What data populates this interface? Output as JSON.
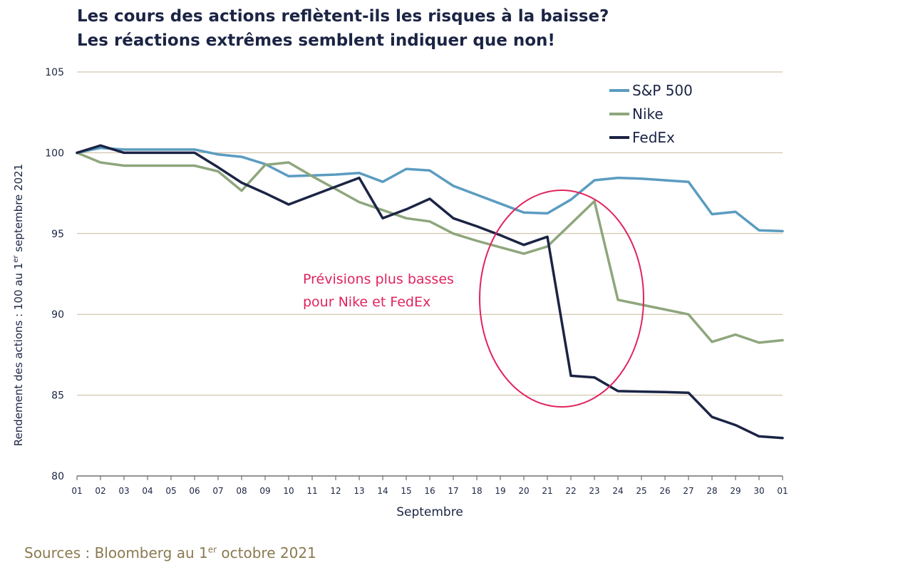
{
  "chart_data": {
    "type": "line",
    "title_line1": "Les cours des actions reflètent-ils les risques à la baisse?",
    "title_line2": "Les réactions extrêmes semblent indiquer que non!",
    "ylabel_pre": "Rendement des actions : 100 au 1",
    "ylabel_sup": "er",
    "ylabel_post": " septembre 2021",
    "xlabel": "Septembre",
    "ylim": [
      80,
      105
    ],
    "yticks": [
      "80",
      "85",
      "90",
      "95",
      "100",
      "105"
    ],
    "categories": [
      "01",
      "02",
      "03",
      "04",
      "05",
      "06",
      "07",
      "08",
      "09",
      "10",
      "11",
      "12",
      "13",
      "14",
      "15",
      "16",
      "17",
      "18",
      "19",
      "20",
      "21",
      "22",
      "23",
      "24",
      "25",
      "26",
      "27",
      "28",
      "29",
      "30",
      "01"
    ],
    "series": [
      {
        "name": "S&P 500",
        "color": "#5b9cc0",
        "values": [
          100.0,
          100.3,
          100.2,
          100.2,
          100.2,
          100.2,
          99.9,
          99.75,
          99.3,
          98.55,
          98.6,
          98.65,
          98.75,
          98.2,
          99.0,
          98.9,
          97.95,
          97.4,
          96.85,
          96.3,
          96.25,
          97.1,
          98.3,
          98.45,
          98.4,
          98.3,
          98.2,
          96.2,
          96.35,
          95.2,
          95.15
        ]
      },
      {
        "name": "Nike",
        "color": "#8ea67c",
        "values": [
          100.0,
          99.4,
          99.2,
          99.2,
          99.2,
          99.2,
          98.85,
          97.65,
          99.25,
          99.4,
          98.55,
          97.75,
          96.95,
          96.45,
          95.95,
          95.75,
          95.0,
          94.55,
          94.15,
          93.75,
          94.2,
          95.6,
          97.0,
          90.9,
          90.6,
          90.3,
          90.0,
          88.3,
          88.75,
          88.25,
          88.4
        ]
      },
      {
        "name": "FedEx",
        "color": "#1b2444",
        "values": [
          100.0,
          100.45,
          100.0,
          100.0,
          100.0,
          100.0,
          99.1,
          98.15,
          97.5,
          96.8,
          97.35,
          97.9,
          98.45,
          95.95,
          96.5,
          97.15,
          95.95,
          95.45,
          94.9,
          94.3,
          94.8,
          86.2,
          86.1,
          85.25,
          85.22,
          85.19,
          85.15,
          83.65,
          83.15,
          82.45,
          82.35
        ]
      }
    ],
    "annotation_line1": "Prévisions plus basses",
    "annotation_line2": "pour Nike et FedEx",
    "annotation_color": "#e0245e",
    "gridline_color": "#c8b89a",
    "legend_position": "top-right",
    "source_pre": "Sources : Bloomberg au 1",
    "source_sup": "er",
    "source_post": " octobre 2021"
  }
}
